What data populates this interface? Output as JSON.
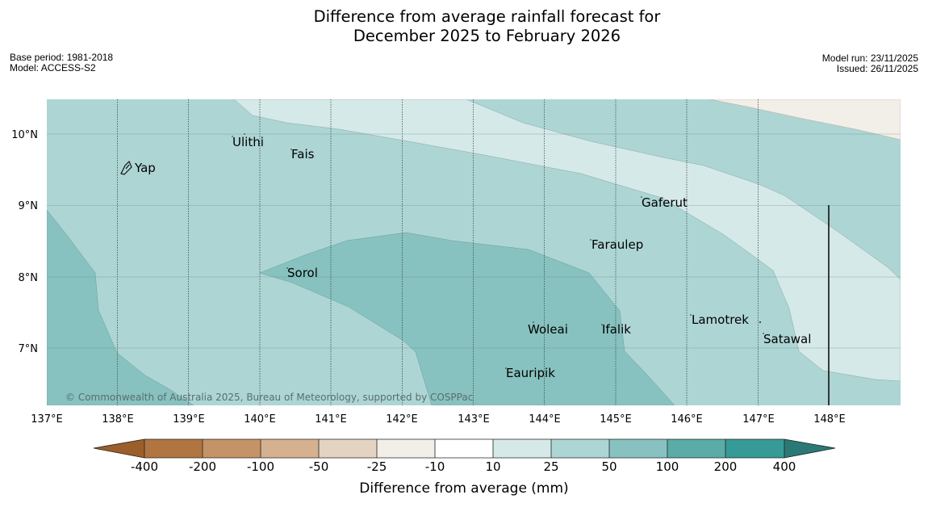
{
  "title": {
    "line1": "Difference from average rainfall forecast for",
    "line2": "December 2025 to February 2026"
  },
  "meta": {
    "base_period": "Base period: 1981-2018",
    "model": "Model: ACCESS-S2",
    "model_run": "Model run: 23/11/2025",
    "issued": "Issued: 26/11/2025"
  },
  "map": {
    "lon_range": [
      137,
      149
    ],
    "lat_range": [
      6.2,
      10.5
    ],
    "lon_ticks": [
      "137°E",
      "138°E",
      "139°E",
      "140°E",
      "141°E",
      "142°E",
      "143°E",
      "144°E",
      "145°E",
      "146°E",
      "147°E",
      "148°E"
    ],
    "lat_ticks": [
      "10°N",
      "9°N",
      "8°N",
      "7°N"
    ],
    "places": [
      {
        "name": "Yap",
        "lon": 138.25,
        "lat": 9.5
      },
      {
        "name": "Ulithi",
        "lon": 139.7,
        "lat": 9.9
      },
      {
        "name": "Fais",
        "lon": 140.5,
        "lat": 9.75
      },
      {
        "name": "Gaferut",
        "lon": 145.35,
        "lat": 9.05
      },
      {
        "name": "Faraulep",
        "lon": 144.6,
        "lat": 8.45
      },
      {
        "name": "Sorol",
        "lon": 140.4,
        "lat": 8.05
      },
      {
        "name": "Woleai",
        "lon": 143.9,
        "lat": 7.35
      },
      {
        "name": "Ifalik",
        "lon": 144.45,
        "lat": 7.25
      },
      {
        "name": "Lamotrek",
        "lon": 146.05,
        "lat": 7.45
      },
      {
        "name": "Satawal",
        "lon": 147.05,
        "lat": 7.15
      },
      {
        "name": "Eauripik",
        "lon": 143.4,
        "lat": 6.65
      }
    ],
    "copyright": "© Commonwealth of Australia 2025, Bureau of Meteorology, supported by COSPPac"
  },
  "colorbar": {
    "label": "Difference from average (mm)",
    "ticks": [
      "-400",
      "-200",
      "-100",
      "-50",
      "-25",
      "-10",
      "10",
      "25",
      "50",
      "100",
      "200",
      "400"
    ],
    "colors": [
      "#9c5e2a",
      "#b07540",
      "#c49366",
      "#d6b18f",
      "#e5d3c2",
      "#f2eee8",
      "#ffffff",
      "#d5e9e8",
      "#add5d4",
      "#87c2c0",
      "#5aaca9",
      "#369a97",
      "#2a7976"
    ]
  }
}
